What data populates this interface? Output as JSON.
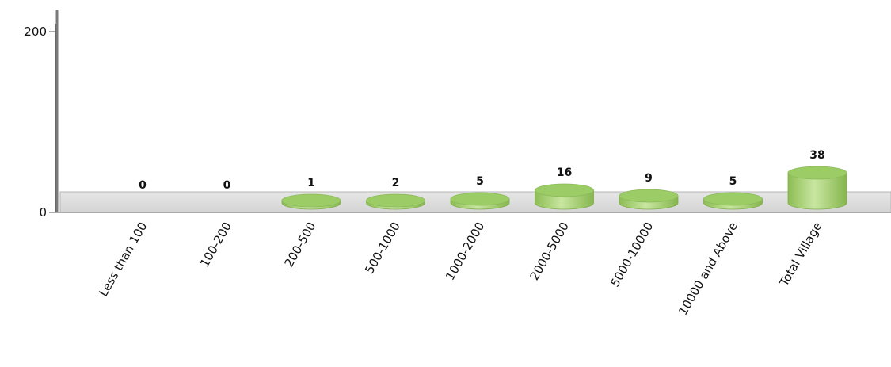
{
  "chart_data": {
    "type": "bar",
    "style": "3d-cylinder",
    "categories": [
      "Less than 100",
      "100-200",
      "200-500",
      "500-1000",
      "1000-2000",
      "2000-5000",
      "5000-10000",
      "10000 and Above",
      "Total Village"
    ],
    "values": [
      0,
      0,
      1,
      2,
      5,
      16,
      9,
      5,
      38
    ],
    "yticks": [
      0,
      200
    ],
    "ylim": [
      0,
      200
    ],
    "title": "",
    "xlabel": "",
    "ylabel": "",
    "grid": false,
    "colors": {
      "bar": "#9ccc65",
      "bar_top": "#b5dc82",
      "bar_side_dark": "#7fae4a",
      "floor": "#dcdcdc",
      "axis": "#555555"
    }
  }
}
